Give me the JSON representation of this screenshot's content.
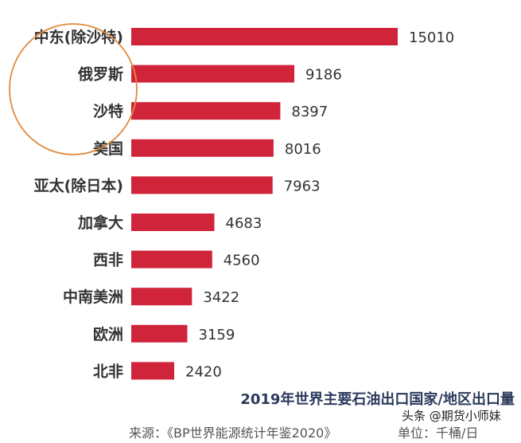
{
  "chart_data": {
    "type": "bar",
    "orientation": "horizontal",
    "title": "2019年世界主要石油出口国家/地区出口量",
    "source": "来源：《BP世界能源统计年鉴2020》",
    "unit": "单位：千桶/日",
    "categories": [
      "中东(除沙特)",
      "俄罗斯",
      "沙特",
      "美国",
      "亚太(除日本)",
      "加拿大",
      "西非",
      "中南美洲",
      "欧洲",
      "北非"
    ],
    "values": [
      15010,
      9186,
      8397,
      8016,
      7963,
      4683,
      4560,
      3422,
      3159,
      2420
    ],
    "bar_color": "#d0243a",
    "highlight": {
      "shape": "ellipse",
      "color": "#e08a3c",
      "categories": [
        "中东(除沙特)",
        "俄罗斯",
        "沙特"
      ]
    },
    "grid": false
  },
  "watermark": "头条 @期货小师妹"
}
